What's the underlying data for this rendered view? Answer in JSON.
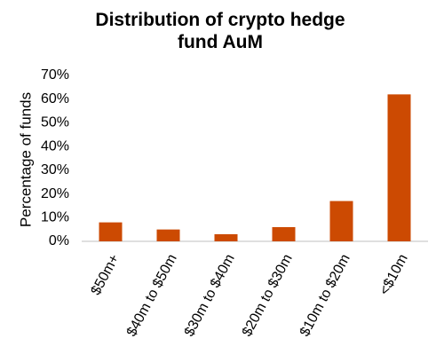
{
  "chart_data": {
    "type": "bar",
    "title": "Distribution of crypto hedge fund AuM",
    "y_label": "Percentage of funds",
    "categories": [
      "$50m+",
      "$40m to $50m",
      "$30m to $40m",
      "$20m to $30m",
      "$10m to $20m",
      "<$10m"
    ],
    "values": [
      8,
      5,
      3,
      6,
      17,
      62
    ],
    "color": "#cc4a02",
    "ylim": [
      0,
      70
    ],
    "yticks": [
      {
        "value": 0,
        "label": "0%"
      },
      {
        "value": 10,
        "label": "10%"
      },
      {
        "value": 20,
        "label": "20%"
      },
      {
        "value": 30,
        "label": "30%"
      },
      {
        "value": 40,
        "label": "40%"
      },
      {
        "value": 50,
        "label": "50%"
      },
      {
        "value": 60,
        "label": "60%"
      },
      {
        "value": 70,
        "label": "70%"
      }
    ],
    "grid": false
  }
}
